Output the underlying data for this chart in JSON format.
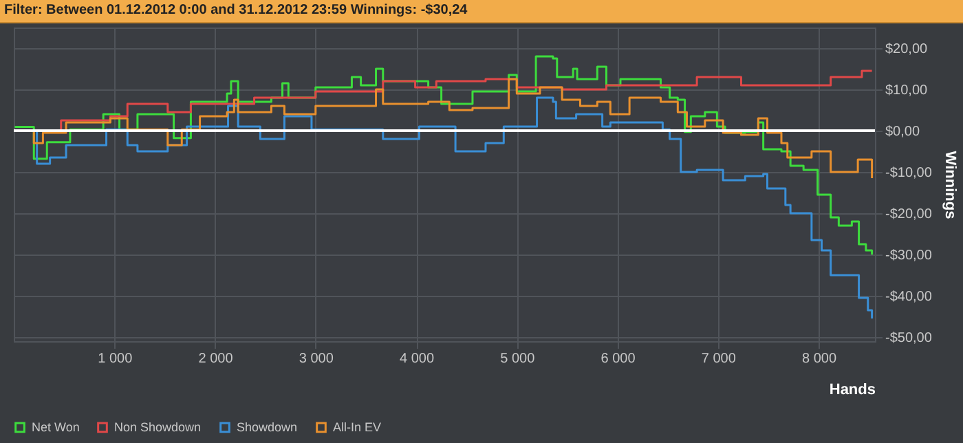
{
  "chart_data": {
    "type": "step",
    "title": "Filter: Between 01.12.2012 0:00 and 31.12.2012 23:59 Winnings: -$30,24",
    "xlabel": "Hands",
    "ylabel": "Winnings",
    "xlim": [
      0,
      8560
    ],
    "ylim": [
      -51,
      25
    ],
    "xticks": [
      {
        "value": 1000,
        "label": "1 000"
      },
      {
        "value": 2000,
        "label": "2 000"
      },
      {
        "value": 3000,
        "label": "3 000"
      },
      {
        "value": 4000,
        "label": "4 000"
      },
      {
        "value": 5000,
        "label": "5 000"
      },
      {
        "value": 6000,
        "label": "6 000"
      },
      {
        "value": 7000,
        "label": "7 000"
      },
      {
        "value": 8000,
        "label": "8 000"
      }
    ],
    "yticks": [
      {
        "value": -50,
        "label": "-$50,00"
      },
      {
        "value": -40,
        "label": "-$40,00"
      },
      {
        "value": -30,
        "label": "-$30,00"
      },
      {
        "value": -20,
        "label": "-$20,00"
      },
      {
        "value": -10,
        "label": "-$10,00"
      },
      {
        "value": 0,
        "label": "$0,00"
      },
      {
        "value": 10,
        "label": "$10,00"
      },
      {
        "value": 20,
        "label": "$20,00"
      }
    ],
    "grid": true,
    "legend": "bottom",
    "ref_lines": [
      {
        "axis": "y",
        "value": 0,
        "color": "#ffffff"
      }
    ],
    "series": [
      {
        "name": "Net Won",
        "color": "#3ddc3d",
        "x": [
          10,
          200,
          330,
          560,
          890,
          1050,
          1230,
          1590,
          1760,
          2120,
          2160,
          2230,
          2560,
          2670,
          2730,
          3000,
          3360,
          3450,
          3600,
          3670,
          4120,
          4250,
          4560,
          4920,
          5000,
          5190,
          5360,
          5400,
          5560,
          5600,
          5800,
          5890,
          6030,
          6430,
          6520,
          6600,
          6670,
          6730,
          6870,
          6990,
          7070,
          7270,
          7400,
          7450,
          7630,
          7720,
          7850,
          7990,
          8120,
          8200,
          8330,
          8400,
          8470,
          8530
        ],
        "values": [
          0.9,
          -6.8,
          -2.8,
          0.3,
          4,
          0.3,
          4,
          -1.8,
          7,
          9,
          12,
          7,
          8,
          11.5,
          8,
          10.5,
          13,
          11,
          15,
          12,
          10.5,
          6.5,
          9.5,
          13.5,
          9.5,
          18,
          17.5,
          13,
          15,
          12.5,
          15.5,
          11,
          12.5,
          10.5,
          8,
          7.5,
          -0.3,
          3.5,
          4.5,
          1,
          -0.5,
          -0.3,
          2,
          -4.5,
          -5,
          -8.5,
          -9.5,
          -15.5,
          -21,
          -23,
          -22,
          -27.5,
          -29,
          -30
        ]
      },
      {
        "name": "Non Showdown",
        "color": "#e04848",
        "x": [
          10,
          470,
          960,
          1130,
          1530,
          1760,
          2390,
          3000,
          3670,
          3990,
          4200,
          4560,
          4690,
          5000,
          5450,
          5890,
          6430,
          6790,
          7230,
          7890,
          8120,
          8430,
          8530
        ],
        "values": [
          0,
          2.5,
          3.5,
          6.5,
          4.5,
          6.5,
          8,
          9.5,
          12,
          10.5,
          12,
          12,
          12.5,
          10.5,
          10,
          11,
          11,
          13,
          11,
          11,
          13,
          14.5,
          14.5
        ]
      },
      {
        "name": "Showdown",
        "color": "#3a8fd6",
        "x": [
          10,
          230,
          360,
          520,
          830,
          920,
          1130,
          1230,
          1530,
          1720,
          2130,
          2230,
          2450,
          2690,
          2960,
          3670,
          4030,
          4390,
          4560,
          4690,
          4870,
          5090,
          5200,
          5360,
          5390,
          5590,
          5850,
          5930,
          6450,
          6520,
          6630,
          6790,
          7050,
          7270,
          7450,
          7490,
          7650,
          7670,
          7720,
          7850,
          7930,
          8030,
          8120,
          8330,
          8400,
          8490,
          8530
        ],
        "values": [
          0,
          -8,
          -6.5,
          -3.5,
          -3.5,
          0.3,
          -3.5,
          -5,
          -3.5,
          1,
          6,
          1,
          -2,
          3.5,
          0.3,
          -2,
          1,
          -5,
          -5,
          -3,
          1,
          1,
          8,
          7,
          3,
          4,
          1,
          2,
          0.3,
          -2,
          -10,
          -9.5,
          -12,
          -11,
          -10.5,
          -14,
          -14,
          -18,
          -20,
          -20,
          -26.5,
          -29,
          -35,
          -35,
          -40.5,
          -43.5,
          -45.5
        ]
      },
      {
        "name": "All-In EV",
        "color": "#e8902e",
        "x": [
          10,
          200,
          290,
          520,
          960,
          1130,
          1530,
          1670,
          1850,
          2120,
          2190,
          2230,
          2560,
          2690,
          3000,
          3360,
          3600,
          3670,
          4120,
          4330,
          4560,
          4920,
          5000,
          5230,
          5450,
          5630,
          5800,
          5930,
          6120,
          6430,
          6600,
          6690,
          6870,
          7050,
          7230,
          7400,
          7490,
          7630,
          7690,
          7930,
          8120,
          8390,
          8530
        ],
        "values": [
          0,
          -3,
          -0.5,
          2,
          3,
          0.3,
          -3.5,
          0.3,
          3.5,
          4.5,
          7.5,
          4.5,
          6,
          4,
          6,
          6,
          10,
          6.5,
          7,
          5,
          5.5,
          12.5,
          9,
          10.5,
          7.5,
          6,
          7,
          4,
          8,
          7,
          4.5,
          1,
          2.5,
          -0.5,
          -1,
          3,
          -0.5,
          -3,
          -6.5,
          -5,
          -10,
          -7,
          -11.5
        ]
      }
    ]
  }
}
